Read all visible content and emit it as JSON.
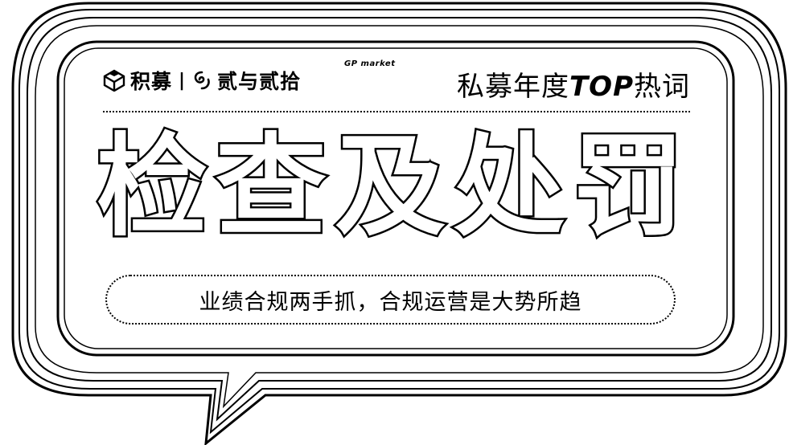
{
  "brand": {
    "name": "积募",
    "separator": "|",
    "partner_name": "贰与贰拾",
    "partner_tag": "GP market",
    "logo_icon": "cube-logo-icon",
    "partner_icon": "swirl-logo-icon"
  },
  "header": {
    "title_prefix": "私募年度",
    "title_latin": "TOP",
    "title_suffix": "热词"
  },
  "main": {
    "keyword": "检查及处罚"
  },
  "subtitle": {
    "text": "业绩合规两手抓，合规运营是大势所趋"
  },
  "colors": {
    "ink": "#000000",
    "paper": "#ffffff"
  }
}
